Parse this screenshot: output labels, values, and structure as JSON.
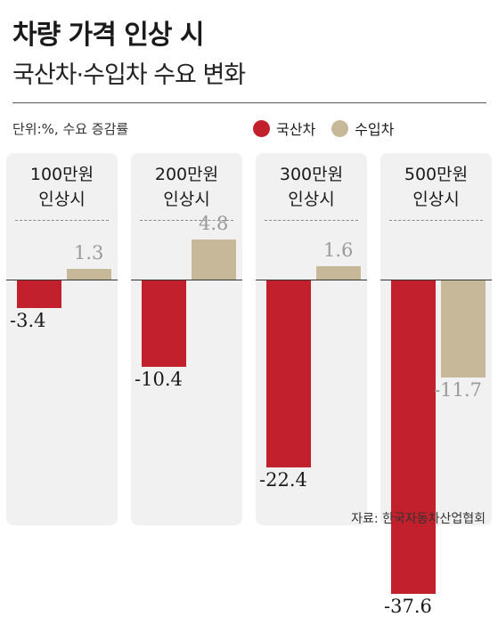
{
  "header": {
    "title": "차량 가격 인상 시",
    "subtitle": "국산차·수입차 수요 변화"
  },
  "unit_label": "단위:%, 수요 증감률",
  "source": "자료: 한국자동차산업협회",
  "colors": {
    "domestic": "#c3202e",
    "imported": "#c7b899",
    "imported_text": "#9a9a9a"
  },
  "chart_data": {
    "type": "bar",
    "categories": [
      "100만원 인상시",
      "200만원 인상시",
      "300만원 인상시",
      "500만원 인상시"
    ],
    "category_lines": [
      [
        "100만원",
        "인상시"
      ],
      [
        "200만원",
        "인상시"
      ],
      [
        "300만원",
        "인상시"
      ],
      [
        "500만원",
        "인상시"
      ]
    ],
    "series": [
      {
        "name": "국산차",
        "values": [
          -3.4,
          -10.4,
          -22.4,
          -37.6
        ]
      },
      {
        "name": "수입차",
        "values": [
          1.3,
          4.8,
          1.6,
          -11.7
        ]
      }
    ],
    "value_labels": [
      [
        "-3.4",
        "-10.4",
        "-22.4",
        "-37.6"
      ],
      [
        "1.3",
        "4.8",
        "1.6",
        "-11.7"
      ]
    ],
    "legend_position": "top-right",
    "grid": false
  }
}
